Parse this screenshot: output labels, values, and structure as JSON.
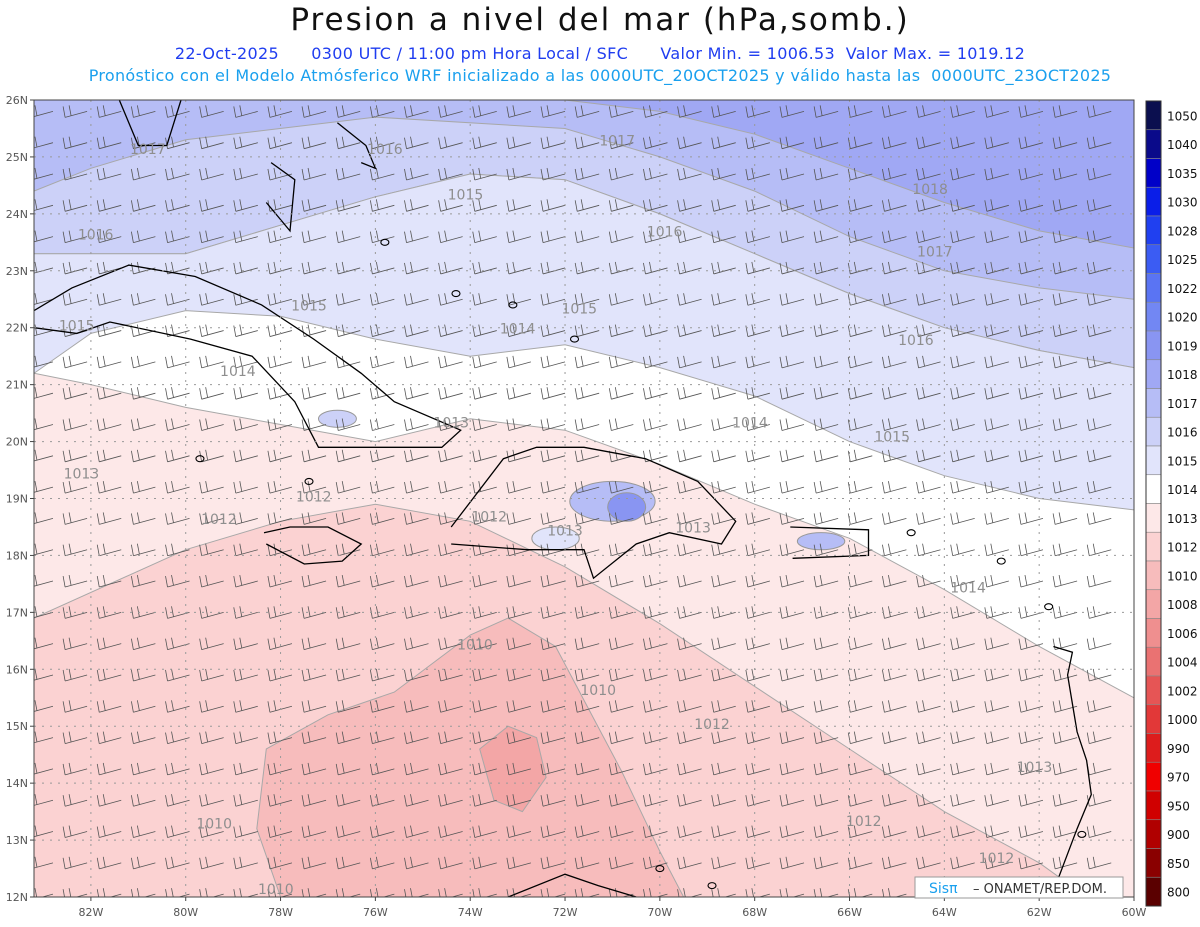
{
  "header": {
    "title": "Presion a nivel del mar (hPa,somb.)",
    "date": "22-Oct-2025",
    "time": "0300 UTC / 11:00 pm Hora Local / SFC",
    "min": "Valor Min. = 1006.53",
    "max": "Valor Max. = 1019.12",
    "model_line": "Pronóstico con el Modelo Atmósferico WRF inicializado a las 0000UTC_20OCT2025 y válido hasta las  0000UTC_23OCT2025"
  },
  "axes": {
    "lat_labels": [
      "26N",
      "25N",
      "24N",
      "23N",
      "22N",
      "21N",
      "20N",
      "19N",
      "18N",
      "17N",
      "16N",
      "15N",
      "14N",
      "13N",
      "12N"
    ],
    "lon_labels": [
      "82W",
      "80W",
      "78W",
      "76W",
      "74W",
      "72W",
      "70W",
      "68W",
      "66W",
      "64W",
      "62W",
      "60W"
    ],
    "lat_range": [
      12,
      26
    ],
    "lon_range": [
      -83.2,
      -60
    ]
  },
  "colorbar": {
    "labels": [
      "1050",
      "1040",
      "1035",
      "1030",
      "1028",
      "1025",
      "1022",
      "1020",
      "1019",
      "1018",
      "1017",
      "1016",
      "1015",
      "1014",
      "1013",
      "1012",
      "1010",
      "1008",
      "1006",
      "1004",
      "1002",
      "1000",
      "990",
      "970",
      "950",
      "900",
      "850",
      "800"
    ],
    "colors": [
      "#0b0f4f",
      "#0a0a8a",
      "#0000c8",
      "#0a1ee8",
      "#2040f0",
      "#3b5cf3",
      "#5a74f3",
      "#7287f3",
      "#8995f2",
      "#a0a8f4",
      "#b6bdf6",
      "#ccd1f8",
      "#e1e4fb",
      "#ffffff",
      "#fde8e8",
      "#fbd2d2",
      "#f7bcbc",
      "#f3a6a6",
      "#ef8f8f",
      "#ea7272",
      "#e65555",
      "#e23838",
      "#dd1c1c",
      "#f00000",
      "#d00000",
      "#b00000",
      "#8a0000",
      "#5a0000"
    ]
  },
  "contour_labels": [
    {
      "text": "1017",
      "lon": -80.8,
      "lat": 25.05
    },
    {
      "text": "1016",
      "lon": -75.8,
      "lat": 25.05
    },
    {
      "text": "1017",
      "lon": -70.9,
      "lat": 25.2
    },
    {
      "text": "1018",
      "lon": -64.3,
      "lat": 24.35
    },
    {
      "text": "1015",
      "lon": -74.1,
      "lat": 24.25
    },
    {
      "text": "1016",
      "lon": -81.9,
      "lat": 23.55
    },
    {
      "text": "1016",
      "lon": -69.9,
      "lat": 23.6
    },
    {
      "text": "1017",
      "lon": -64.2,
      "lat": 23.25
    },
    {
      "text": "1015",
      "lon": -77.4,
      "lat": 22.3
    },
    {
      "text": "1015",
      "lon": -71.7,
      "lat": 22.25
    },
    {
      "text": "1015",
      "lon": -82.3,
      "lat": 21.95
    },
    {
      "text": "1014",
      "lon": -73.0,
      "lat": 21.9
    },
    {
      "text": "1016",
      "lon": -64.6,
      "lat": 21.7
    },
    {
      "text": "1014",
      "lon": -78.9,
      "lat": 21.15
    },
    {
      "text": "1013",
      "lon": -74.4,
      "lat": 20.25
    },
    {
      "text": "1014",
      "lon": -68.1,
      "lat": 20.25
    },
    {
      "text": "1015",
      "lon": -65.1,
      "lat": 20.0
    },
    {
      "text": "1013",
      "lon": -82.2,
      "lat": 19.35
    },
    {
      "text": "1012",
      "lon": -77.3,
      "lat": 18.95
    },
    {
      "text": "1012",
      "lon": -79.3,
      "lat": 18.55
    },
    {
      "text": "1012",
      "lon": -73.6,
      "lat": 18.6
    },
    {
      "text": "1013",
      "lon": -72.0,
      "lat": 18.35
    },
    {
      "text": "1013",
      "lon": -69.3,
      "lat": 18.4
    },
    {
      "text": "1014",
      "lon": -63.5,
      "lat": 17.35
    },
    {
      "text": "1010",
      "lon": -73.9,
      "lat": 16.35
    },
    {
      "text": "1010",
      "lon": -71.3,
      "lat": 15.55
    },
    {
      "text": "1012",
      "lon": -68.9,
      "lat": 14.95
    },
    {
      "text": "1013",
      "lon": -62.1,
      "lat": 14.2
    },
    {
      "text": "1010",
      "lon": -79.4,
      "lat": 13.2
    },
    {
      "text": "1012",
      "lon": -65.7,
      "lat": 13.25
    },
    {
      "text": "1012",
      "lon": -62.9,
      "lat": 12.6
    },
    {
      "text": "1010",
      "lon": -78.1,
      "lat": 12.05
    }
  ],
  "credit": {
    "brand": "Sisπ",
    "text": "– ONAMET/REP.DOM."
  }
}
